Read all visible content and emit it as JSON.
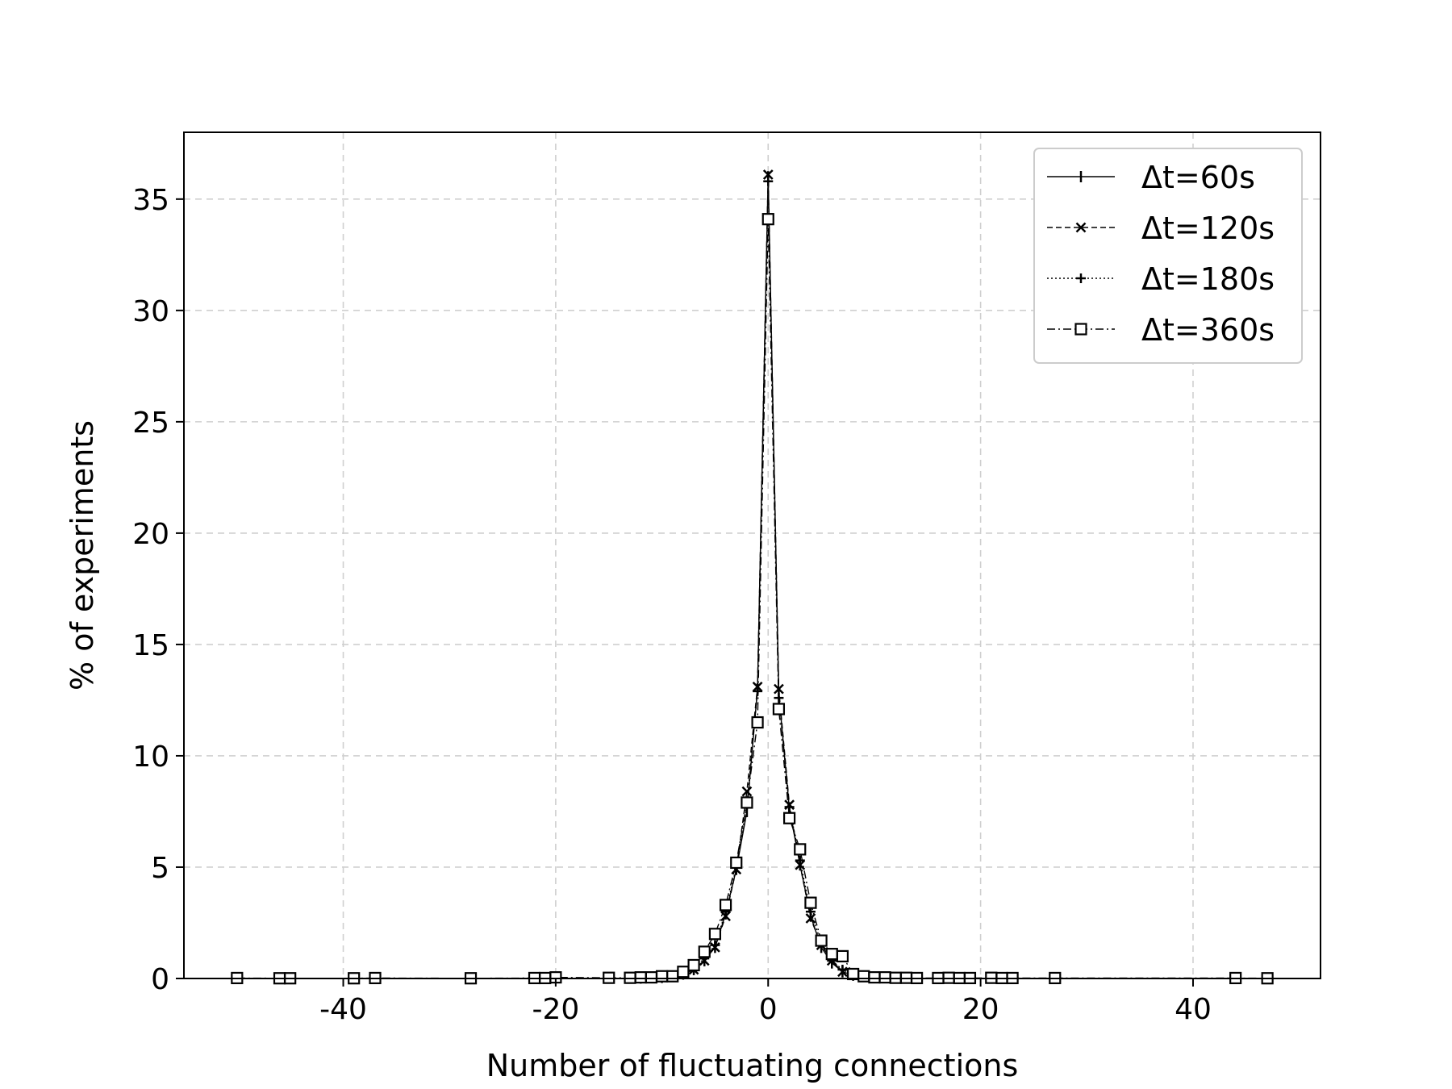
{
  "chart_data": {
    "type": "line",
    "title": "",
    "xlabel": "Number of fluctuating connections",
    "ylabel": "% of experiments",
    "xlim": [
      -55,
      52
    ],
    "ylim": [
      0,
      38
    ],
    "xticks": [
      -40,
      -20,
      0,
      20,
      40
    ],
    "xtick_labels": [
      "-40",
      "-20",
      "0",
      "20",
      "40"
    ],
    "yticks": [
      0,
      5,
      10,
      15,
      20,
      25,
      30,
      35
    ],
    "ytick_labels": [
      "0",
      "5",
      "10",
      "15",
      "20",
      "25",
      "30",
      "35"
    ],
    "grid": true,
    "legend_position": "top-right",
    "series": [
      {
        "name": "Δt=60s",
        "marker": "vline",
        "linestyle": "solid",
        "x": [
          -12,
          -10,
          -8,
          -7,
          -6,
          -5,
          -4,
          -3,
          -2,
          -1,
          0,
          1,
          2,
          3,
          4,
          5,
          6,
          7,
          8,
          10,
          12
        ],
        "y": [
          0.02,
          0.05,
          0.2,
          0.4,
          0.8,
          1.4,
          2.9,
          4.9,
          7.5,
          13.0,
          36.0,
          12.8,
          7.6,
          5.1,
          2.8,
          1.4,
          0.7,
          0.3,
          0.15,
          0.05,
          0.02
        ]
      },
      {
        "name": "Δt=120s",
        "marker": "x",
        "linestyle": "dashed",
        "x": [
          -12,
          -10,
          -8,
          -7,
          -6,
          -5,
          -4,
          -3,
          -2,
          -1,
          0,
          1,
          2,
          3,
          4,
          5,
          6,
          7,
          8,
          10,
          12
        ],
        "y": [
          0.02,
          0.05,
          0.2,
          0.4,
          0.8,
          1.4,
          2.8,
          4.9,
          8.4,
          13.1,
          36.1,
          13.0,
          7.8,
          5.1,
          2.7,
          1.5,
          0.8,
          0.3,
          0.15,
          0.05,
          0.02
        ]
      },
      {
        "name": "Δt=180s",
        "marker": "plus",
        "linestyle": "dotted",
        "x": [
          -12,
          -10,
          -8,
          -7,
          -6,
          -5,
          -4,
          -3,
          -2,
          -1,
          0,
          1,
          2,
          3,
          4,
          5,
          6,
          7,
          8,
          10,
          12
        ],
        "y": [
          0.02,
          0.06,
          0.25,
          0.45,
          0.9,
          1.5,
          3.0,
          5.0,
          7.8,
          12.9,
          35.8,
          12.6,
          7.7,
          5.3,
          3.0,
          1.6,
          0.8,
          0.4,
          0.15,
          0.05,
          0.02
        ]
      },
      {
        "name": "Δt=360s",
        "marker": "square",
        "linestyle": "dashdot",
        "x": [
          -50,
          -46,
          -45,
          -39,
          -37,
          -28,
          -22,
          -21,
          -20,
          -15,
          -13,
          -12,
          -11,
          -10,
          -9,
          -8,
          -7,
          -6,
          -5,
          -4,
          -3,
          -2,
          -1,
          0,
          1,
          2,
          3,
          4,
          5,
          6,
          7,
          8,
          9,
          10,
          11,
          12,
          13,
          14,
          16,
          17,
          18,
          19,
          21,
          22,
          23,
          27,
          44,
          47
        ],
        "y": [
          0.02,
          0.01,
          0.01,
          0.01,
          0.02,
          0.01,
          0.02,
          0.02,
          0.05,
          0.03,
          0.03,
          0.05,
          0.05,
          0.1,
          0.1,
          0.3,
          0.6,
          1.2,
          2.0,
          3.3,
          5.2,
          7.9,
          11.5,
          34.1,
          12.1,
          7.2,
          5.8,
          3.4,
          1.7,
          1.1,
          1.0,
          0.2,
          0.1,
          0.05,
          0.05,
          0.03,
          0.03,
          0.02,
          0.02,
          0.03,
          0.02,
          0.02,
          0.03,
          0.02,
          0.02,
          0.02,
          0.02,
          0.01
        ]
      }
    ]
  }
}
